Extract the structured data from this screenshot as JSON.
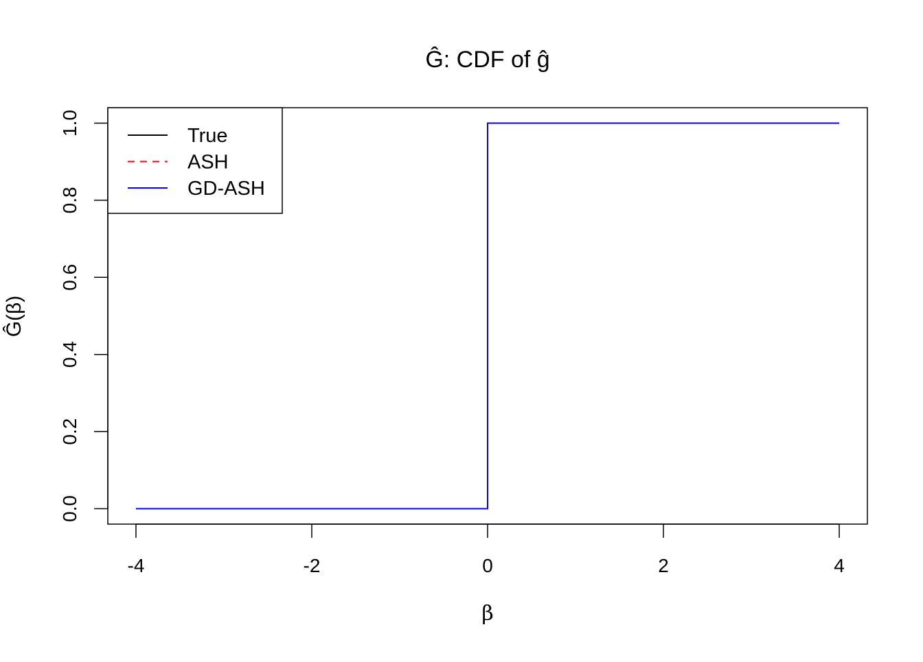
{
  "chart_data": {
    "type": "line",
    "title": "Ĝ: CDF of ĝ",
    "xlabel": "β",
    "ylabel": "Ĝ(β)",
    "xlim": [
      -4.32,
      4.32
    ],
    "ylim": [
      -0.04,
      1.04
    ],
    "xticks": [
      -4,
      -2,
      0,
      2,
      4
    ],
    "yticks": [
      0.0,
      0.2,
      0.4,
      0.6,
      0.8,
      1.0
    ],
    "xtick_labels": [
      "-4",
      "-2",
      "0",
      "2",
      "4"
    ],
    "ytick_labels": [
      "0.0",
      "0.2",
      "0.4",
      "0.6",
      "0.8",
      "1.0"
    ],
    "grid": false,
    "legend_position": "top-left",
    "series": [
      {
        "name": "True",
        "color": "#000000",
        "dash": "solid",
        "x": [
          -4,
          0,
          0,
          4
        ],
        "y": [
          0,
          0,
          1,
          1
        ]
      },
      {
        "name": "ASH",
        "color": "#ff0000",
        "dash": "dashed",
        "x": [
          -4,
          0,
          0,
          4
        ],
        "y": [
          0,
          0,
          1,
          1
        ]
      },
      {
        "name": "GD-ASH",
        "color": "#0000ff",
        "dash": "solid",
        "x": [
          -4,
          0,
          0,
          4
        ],
        "y": [
          0,
          0,
          1,
          1
        ]
      }
    ]
  }
}
